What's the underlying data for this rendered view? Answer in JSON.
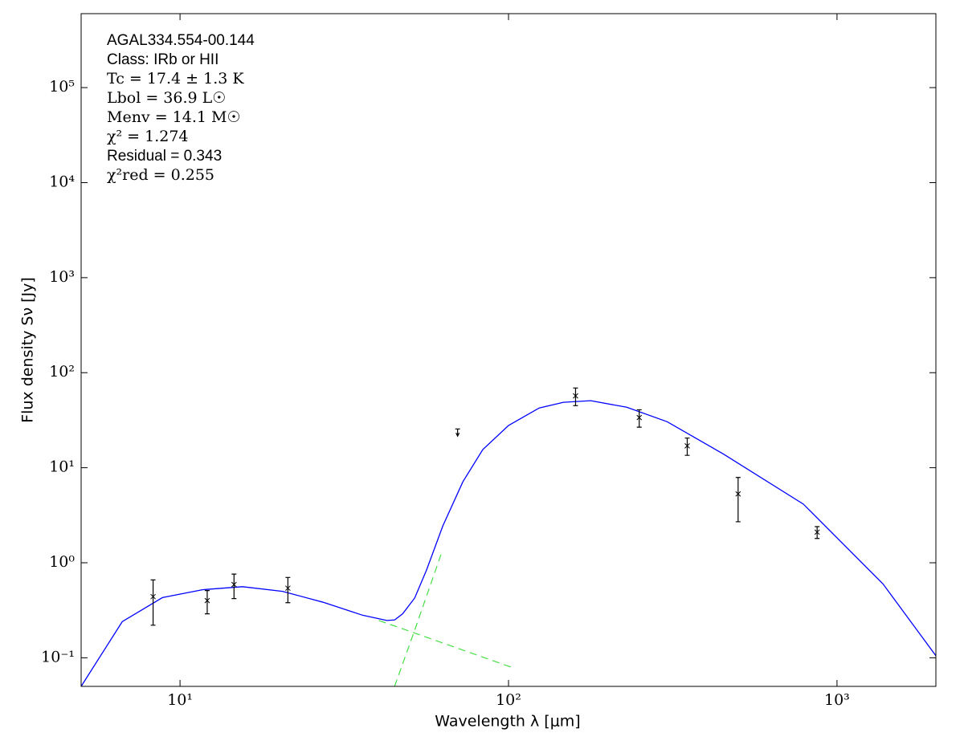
{
  "chart_data": {
    "type": "sed",
    "xscale": "log",
    "yscale": "log",
    "xlabel": "Wavelength λ [μm]",
    "ylabel": "Flux density Sν [Jy]",
    "xlim": [
      5,
      2000
    ],
    "ylim": [
      0.05,
      600000
    ],
    "xticks": [
      {
        "value": 10,
        "label": "10¹"
      },
      {
        "value": 100,
        "label": "10²"
      },
      {
        "value": 1000,
        "label": "10³"
      }
    ],
    "yticks": [
      {
        "value": 0.1,
        "label": "10⁻¹"
      },
      {
        "value": 1,
        "label": "10⁰"
      },
      {
        "value": 10,
        "label": "10¹"
      },
      {
        "value": 100,
        "label": "10²"
      },
      {
        "value": 1000,
        "label": "10³"
      },
      {
        "value": 10000,
        "label": "10⁴"
      },
      {
        "value": 100000,
        "label": "10⁵"
      }
    ],
    "annotations": [
      "AGAL334.554-00.144",
      "Class: IRb or HII",
      "Tc = 17.4 ± 1.3 K",
      "Lbol = 36.9 L☉",
      "Menv = 14.1 M☉",
      "χ² = 1.274",
      "Residual = 0.343",
      "χ²red = 0.255"
    ],
    "series": [
      {
        "style": "line",
        "color": "#0000ff",
        "x": [
          5,
          6.67,
          8.84,
          11.7,
          15.5,
          20.5,
          27.2,
          36,
          42.6,
          45,
          47.6,
          51.8,
          56.3,
          63.1,
          72.6,
          83.5,
          100,
          124,
          147,
          178,
          229,
          304,
          450,
          790,
          1380,
          2000
        ],
        "values": [
          0.05,
          0.24,
          0.43,
          0.52,
          0.56,
          0.5,
          0.385,
          0.28,
          0.247,
          0.25,
          0.29,
          0.425,
          0.84,
          2.44,
          7.1,
          15.5,
          27.8,
          42.5,
          48.8,
          50.7,
          43.3,
          30.5,
          14,
          4.14,
          0.6,
          0.105
        ]
      },
      {
        "style": "dashed",
        "color": "#44dd44",
        "x": [
          40.3,
          104.8
        ],
        "values": [
          0.247,
          0.077
        ]
      },
      {
        "style": "dashed",
        "color": "#44dd44",
        "x": [
          45,
          51.8,
          62.4
        ],
        "values": [
          0.05,
          0.195,
          1.24
        ]
      },
      {
        "style": "errorbar",
        "color": "#000000",
        "x": [
          8.28,
          12.1,
          14.6,
          21.3,
          160,
          250,
          350,
          500,
          870
        ],
        "values": [
          0.44,
          0.4,
          0.59,
          0.54,
          57,
          33.7,
          17,
          5.3,
          2.1
        ],
        "errors": [
          0.22,
          0.11,
          0.17,
          0.16,
          12,
          7,
          3.5,
          2.6,
          0.3
        ]
      },
      {
        "style": "upper_limit",
        "color": "#000000",
        "x": [
          70
        ],
        "values": [
          25.6
        ]
      }
    ]
  }
}
